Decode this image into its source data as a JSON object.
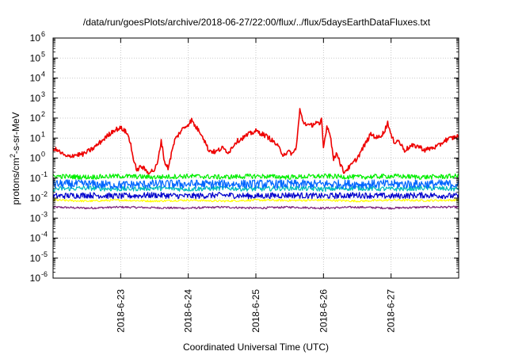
{
  "chart_data": {
    "type": "line",
    "title": "/data/run/goesPlots/archive/2018-06-27/22:00/flux/../flux/5daysEarthDataFluxes.txt",
    "xlabel": "Coordinated Universal Time (UTC)",
    "ylabel": "protons/cm²-s-sr-MeV",
    "ylabel_parts": {
      "base": "protons/cm",
      "sup": "2",
      "rest": "-s-sr-MeV"
    },
    "yscale": "log",
    "ylim": [
      1e-06,
      1000000.0
    ],
    "xlim": [
      0,
      6
    ],
    "grid": true,
    "y_ticks": [
      {
        "value": -6,
        "base": "10",
        "exp": "-6"
      },
      {
        "value": -5,
        "base": "10",
        "exp": "-5"
      },
      {
        "value": -4,
        "base": "10",
        "exp": "-4"
      },
      {
        "value": -3,
        "base": "10",
        "exp": "-3"
      },
      {
        "value": -2,
        "base": "10",
        "exp": "-2"
      },
      {
        "value": -1,
        "base": "10",
        "exp": "-1"
      },
      {
        "value": 0,
        "base": "10",
        "exp": "0"
      },
      {
        "value": 1,
        "base": "10",
        "exp": "1"
      },
      {
        "value": 2,
        "base": "10",
        "exp": "2"
      },
      {
        "value": 3,
        "base": "10",
        "exp": "3"
      },
      {
        "value": 4,
        "base": "10",
        "exp": "4"
      },
      {
        "value": 5,
        "base": "10",
        "exp": "5"
      },
      {
        "value": 6,
        "base": "10",
        "exp": "6"
      }
    ],
    "x_ticks": [
      {
        "value": 1,
        "label": "2018-6-23"
      },
      {
        "value": 2,
        "label": "2018-6-24"
      },
      {
        "value": 3,
        "label": "2018-6-25"
      },
      {
        "value": 4,
        "label": "2018-6-26"
      },
      {
        "value": 5,
        "label": "2018-6-27"
      }
    ],
    "series": [
      {
        "color": "#7b1f7b",
        "noise": 0.05,
        "points": [
          [
            0,
            -2.45
          ],
          [
            0.5,
            -2.5
          ],
          [
            1.0,
            -2.45
          ],
          [
            1.5,
            -2.48
          ],
          [
            2.0,
            -2.5
          ],
          [
            2.5,
            -2.45
          ],
          [
            3.0,
            -2.5
          ],
          [
            3.5,
            -2.45
          ],
          [
            4.0,
            -2.5
          ],
          [
            4.5,
            -2.45
          ],
          [
            5.0,
            -2.5
          ],
          [
            5.5,
            -2.45
          ],
          [
            6.0,
            -2.45
          ]
        ]
      },
      {
        "color": "#ffff00",
        "noise": 0.05,
        "points": [
          [
            0,
            -2.1
          ],
          [
            0.5,
            -2.15
          ],
          [
            1.0,
            -2.1
          ],
          [
            1.5,
            -2.15
          ],
          [
            2.0,
            -2.1
          ],
          [
            2.5,
            -2.15
          ],
          [
            3.0,
            -2.1
          ],
          [
            3.5,
            -2.12
          ],
          [
            4.0,
            -2.1
          ],
          [
            4.5,
            -2.15
          ],
          [
            5.0,
            -2.1
          ],
          [
            5.5,
            -2.12
          ],
          [
            6.0,
            -2.1
          ]
        ]
      },
      {
        "color": "#0000cc",
        "noise": 0.15,
        "points": [
          [
            0,
            -1.9
          ],
          [
            0.5,
            -1.85
          ],
          [
            1.0,
            -1.9
          ],
          [
            1.5,
            -1.85
          ],
          [
            2.0,
            -1.9
          ],
          [
            2.5,
            -1.85
          ],
          [
            3.0,
            -1.9
          ],
          [
            3.5,
            -1.85
          ],
          [
            4.0,
            -1.9
          ],
          [
            4.5,
            -1.85
          ],
          [
            5.0,
            -1.9
          ],
          [
            5.5,
            -1.85
          ],
          [
            6.0,
            -1.9
          ]
        ]
      },
      {
        "color": "#00bbbb",
        "noise": 0.12,
        "points": [
          [
            0,
            -1.55
          ],
          [
            0.5,
            -1.5
          ],
          [
            1.0,
            -1.55
          ],
          [
            1.5,
            -1.5
          ],
          [
            2.0,
            -1.55
          ],
          [
            2.5,
            -1.5
          ],
          [
            3.0,
            -1.55
          ],
          [
            3.5,
            -1.5
          ],
          [
            4.0,
            -1.55
          ],
          [
            4.5,
            -1.5
          ],
          [
            5.0,
            -1.55
          ],
          [
            5.5,
            -1.5
          ],
          [
            6.0,
            -1.55
          ]
        ]
      },
      {
        "color": "#0066ff",
        "noise": 0.22,
        "points": [
          [
            0,
            -1.3
          ],
          [
            0.5,
            -1.3
          ],
          [
            1.0,
            -1.35
          ],
          [
            1.5,
            -1.3
          ],
          [
            2.0,
            -1.3
          ],
          [
            2.5,
            -1.3
          ],
          [
            3.0,
            -1.3
          ],
          [
            3.5,
            -1.3
          ],
          [
            4.0,
            -1.3
          ],
          [
            4.5,
            -1.3
          ],
          [
            5.0,
            -1.3
          ],
          [
            5.5,
            -1.3
          ],
          [
            6.0,
            -1.3
          ]
        ]
      },
      {
        "color": "#00ee00",
        "noise": 0.12,
        "points": [
          [
            0,
            -0.9
          ],
          [
            0.5,
            -0.95
          ],
          [
            1.0,
            -0.9
          ],
          [
            1.5,
            -0.95
          ],
          [
            2.0,
            -0.9
          ],
          [
            2.5,
            -0.95
          ],
          [
            3.0,
            -0.9
          ],
          [
            3.5,
            -0.95
          ],
          [
            4.0,
            -0.9
          ],
          [
            4.5,
            -0.95
          ],
          [
            5.0,
            -0.9
          ],
          [
            5.5,
            -0.95
          ],
          [
            6.0,
            -0.9
          ]
        ]
      },
      {
        "color": "#ee0000",
        "noise": 0.12,
        "points": [
          [
            0,
            0.5
          ],
          [
            0.1,
            0.3
          ],
          [
            0.2,
            0.05
          ],
          [
            0.3,
            0.15
          ],
          [
            0.45,
            0.2
          ],
          [
            0.6,
            0.5
          ],
          [
            0.8,
            1.1
          ],
          [
            0.9,
            1.4
          ],
          [
            1.0,
            1.5
          ],
          [
            1.05,
            1.4
          ],
          [
            1.1,
            1.2
          ],
          [
            1.15,
            0.7
          ],
          [
            1.2,
            -0.3
          ],
          [
            1.25,
            -0.6
          ],
          [
            1.3,
            -0.4
          ],
          [
            1.4,
            -0.7
          ],
          [
            1.5,
            -0.6
          ],
          [
            1.55,
            -0.2
          ],
          [
            1.6,
            0.9
          ],
          [
            1.65,
            -0.2
          ],
          [
            1.7,
            -0.5
          ],
          [
            1.8,
            0.9
          ],
          [
            1.9,
            1.4
          ],
          [
            2.0,
            1.7
          ],
          [
            2.05,
            1.9
          ],
          [
            2.1,
            1.6
          ],
          [
            2.2,
            1.2
          ],
          [
            2.3,
            0.4
          ],
          [
            2.4,
            0.3
          ],
          [
            2.5,
            0.5
          ],
          [
            2.6,
            0.3
          ],
          [
            2.7,
            0.8
          ],
          [
            2.8,
            1.0
          ],
          [
            2.9,
            1.2
          ],
          [
            3.0,
            1.35
          ],
          [
            3.1,
            1.2
          ],
          [
            3.2,
            1.0
          ],
          [
            3.3,
            0.7
          ],
          [
            3.4,
            0.2
          ],
          [
            3.5,
            0.3
          ],
          [
            3.55,
            0.2
          ],
          [
            3.6,
            0.6
          ],
          [
            3.65,
            2.4
          ],
          [
            3.7,
            1.8
          ],
          [
            3.8,
            1.6
          ],
          [
            3.9,
            1.8
          ],
          [
            3.95,
            1.6
          ],
          [
            3.97,
            2.0
          ],
          [
            4.0,
            0.5
          ],
          [
            4.05,
            1.6
          ],
          [
            4.1,
            1.2
          ],
          [
            4.15,
            -0.1
          ],
          [
            4.2,
            0.3
          ],
          [
            4.25,
            -0.3
          ],
          [
            4.3,
            -0.7
          ],
          [
            4.4,
            -0.4
          ],
          [
            4.5,
            0.0
          ],
          [
            4.6,
            0.6
          ],
          [
            4.7,
            1.2
          ],
          [
            4.8,
            1.0
          ],
          [
            4.9,
            1.3
          ],
          [
            4.95,
            1.8
          ],
          [
            5.0,
            1.1
          ],
          [
            5.05,
            0.8
          ],
          [
            5.1,
            0.9
          ],
          [
            5.2,
            0.4
          ],
          [
            5.3,
            0.6
          ],
          [
            5.4,
            0.6
          ],
          [
            5.5,
            0.4
          ],
          [
            5.6,
            0.5
          ],
          [
            5.7,
            0.6
          ],
          [
            5.8,
            0.9
          ],
          [
            5.9,
            1.0
          ],
          [
            6.0,
            1.1
          ]
        ]
      }
    ]
  }
}
